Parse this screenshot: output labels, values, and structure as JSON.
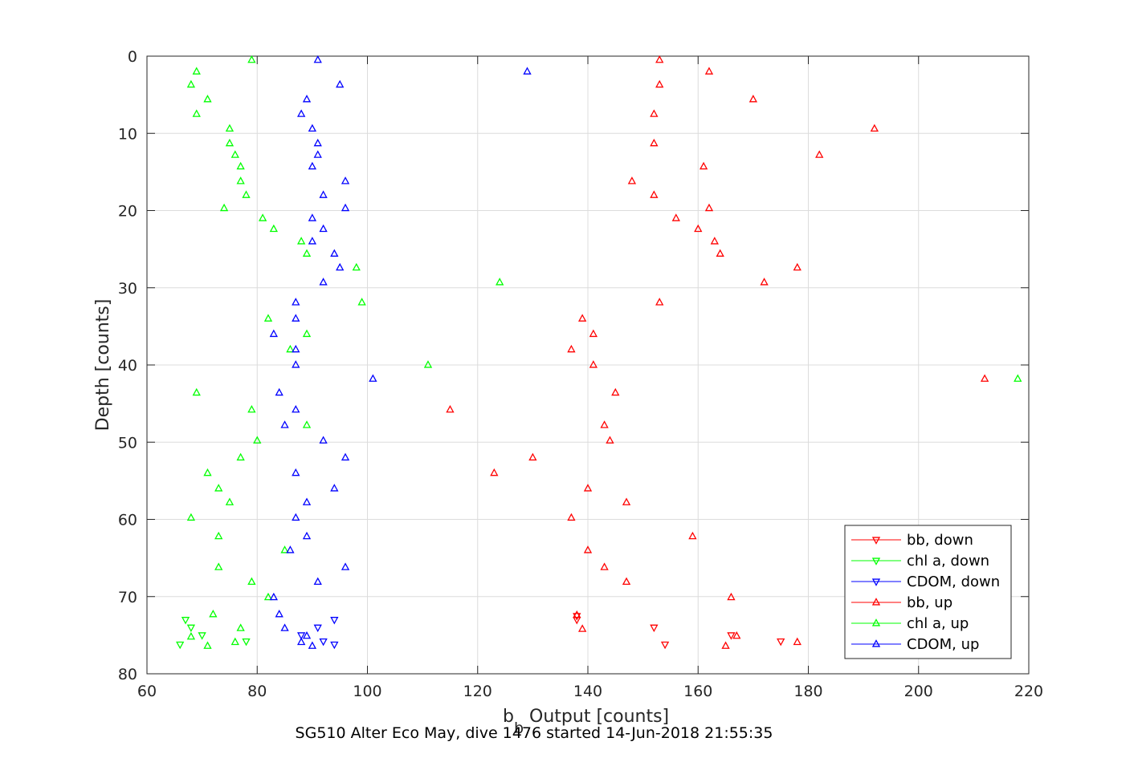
{
  "chart_data": {
    "type": "scatter",
    "xlabel_main": "b",
    "xlabel_sub": "b",
    "xlabel_rest": " Output [counts]",
    "ylabel": "Depth [counts]",
    "caption": "SG510 Alter Eco May, dive 1476 started 14-Jun-2018 21:55:35",
    "xlim": [
      60,
      220
    ],
    "ylim": [
      0,
      80
    ],
    "y_reversed": true,
    "grid": true,
    "legend_position": "bottom-right",
    "x_ticks": [
      "60",
      "80",
      "100",
      "120",
      "140",
      "160",
      "180",
      "200",
      "220"
    ],
    "y_ticks": [
      "0",
      "10",
      "20",
      "30",
      "40",
      "50",
      "60",
      "70",
      "80"
    ],
    "series": [
      {
        "name": "bb, down",
        "color": "#ff0000",
        "marker": "triangle-down",
        "points": [
          [
            138,
            72.5
          ],
          [
            152,
            74
          ],
          [
            166,
            75
          ],
          [
            175,
            75.8
          ],
          [
            154,
            76.2
          ],
          [
            138,
            73
          ]
        ]
      },
      {
        "name": "chl a, down",
        "color": "#00ff00",
        "marker": "triangle-down",
        "points": [
          [
            67,
            73
          ],
          [
            68,
            74
          ],
          [
            70,
            75
          ],
          [
            78,
            75.8
          ],
          [
            66,
            76.2
          ]
        ]
      },
      {
        "name": "CDOM, down",
        "color": "#0000ff",
        "marker": "triangle-down",
        "points": [
          [
            94,
            73
          ],
          [
            91,
            74
          ],
          [
            88,
            75
          ],
          [
            92,
            75.8
          ],
          [
            94,
            76.2
          ]
        ]
      },
      {
        "name": "bb, up",
        "color": "#ff0000",
        "marker": "triangle-up",
        "points": [
          [
            153,
            0.5
          ],
          [
            162,
            2
          ],
          [
            153,
            3.7
          ],
          [
            170,
            5.6
          ],
          [
            152,
            7.5
          ],
          [
            192,
            9.4
          ],
          [
            152,
            11.3
          ],
          [
            182,
            12.8
          ],
          [
            161,
            14.3
          ],
          [
            148,
            16.2
          ],
          [
            152,
            18
          ],
          [
            162,
            19.7
          ],
          [
            156,
            21
          ],
          [
            160,
            22.4
          ],
          [
            163,
            24
          ],
          [
            164,
            25.6
          ],
          [
            178,
            27.4
          ],
          [
            172,
            29.3
          ],
          [
            153,
            31.9
          ],
          [
            139,
            34
          ],
          [
            141,
            36
          ],
          [
            137,
            38
          ],
          [
            141,
            40
          ],
          [
            212,
            41.8
          ],
          [
            145,
            43.6
          ],
          [
            115,
            45.8
          ],
          [
            143,
            47.8
          ],
          [
            144,
            49.8
          ],
          [
            130,
            52
          ],
          [
            123,
            54
          ],
          [
            140,
            56
          ],
          [
            147,
            57.8
          ],
          [
            137,
            59.8
          ],
          [
            159,
            62.2
          ],
          [
            140,
            64
          ],
          [
            143,
            66.2
          ],
          [
            147,
            68.1
          ],
          [
            166,
            70.1
          ],
          [
            138,
            72.4
          ],
          [
            139,
            74.2
          ],
          [
            167,
            75.1
          ],
          [
            178,
            75.9
          ],
          [
            165,
            76.4
          ]
        ]
      },
      {
        "name": "chl a, up",
        "color": "#00ff00",
        "marker": "triangle-up",
        "points": [
          [
            79,
            0.5
          ],
          [
            69,
            2
          ],
          [
            68,
            3.7
          ],
          [
            71,
            5.6
          ],
          [
            69,
            7.5
          ],
          [
            75,
            9.4
          ],
          [
            75,
            11.3
          ],
          [
            76,
            12.8
          ],
          [
            77,
            14.3
          ],
          [
            77,
            16.2
          ],
          [
            78,
            18
          ],
          [
            74,
            19.7
          ],
          [
            81,
            21
          ],
          [
            83,
            22.4
          ],
          [
            88,
            24
          ],
          [
            89,
            25.6
          ],
          [
            98,
            27.4
          ],
          [
            124,
            29.3
          ],
          [
            99,
            31.9
          ],
          [
            82,
            34
          ],
          [
            89,
            36
          ],
          [
            86,
            38
          ],
          [
            111,
            40
          ],
          [
            218,
            41.8
          ],
          [
            69,
            43.6
          ],
          [
            79,
            45.8
          ],
          [
            89,
            47.8
          ],
          [
            80,
            49.8
          ],
          [
            77,
            52
          ],
          [
            71,
            54
          ],
          [
            73,
            56
          ],
          [
            75,
            57.8
          ],
          [
            68,
            59.8
          ],
          [
            73,
            62.2
          ],
          [
            85,
            64
          ],
          [
            73,
            66.2
          ],
          [
            79,
            68.1
          ],
          [
            82,
            70.1
          ],
          [
            72,
            72.3
          ],
          [
            77,
            74.1
          ],
          [
            68,
            75.2
          ],
          [
            76,
            75.9
          ],
          [
            71,
            76.4
          ]
        ]
      },
      {
        "name": "CDOM, up",
        "color": "#0000ff",
        "marker": "triangle-up",
        "points": [
          [
            91,
            0.5
          ],
          [
            129,
            2
          ],
          [
            95,
            3.7
          ],
          [
            89,
            5.6
          ],
          [
            88,
            7.5
          ],
          [
            90,
            9.4
          ],
          [
            91,
            11.3
          ],
          [
            91,
            12.8
          ],
          [
            90,
            14.3
          ],
          [
            96,
            16.2
          ],
          [
            92,
            18
          ],
          [
            96,
            19.7
          ],
          [
            90,
            21
          ],
          [
            92,
            22.4
          ],
          [
            90,
            24
          ],
          [
            94,
            25.6
          ],
          [
            95,
            27.4
          ],
          [
            92,
            29.3
          ],
          [
            87,
            31.9
          ],
          [
            87,
            34
          ],
          [
            83,
            36
          ],
          [
            87,
            38
          ],
          [
            87,
            40
          ],
          [
            101,
            41.8
          ],
          [
            84,
            43.6
          ],
          [
            87,
            45.8
          ],
          [
            85,
            47.8
          ],
          [
            92,
            49.8
          ],
          [
            96,
            52
          ],
          [
            87,
            54
          ],
          [
            94,
            56
          ],
          [
            89,
            57.8
          ],
          [
            87,
            59.8
          ],
          [
            89,
            62.2
          ],
          [
            86,
            64
          ],
          [
            96,
            66.2
          ],
          [
            91,
            68.1
          ],
          [
            83,
            70.1
          ],
          [
            84,
            72.3
          ],
          [
            85,
            74.1
          ],
          [
            89,
            75.1
          ],
          [
            88,
            75.9
          ],
          [
            90,
            76.4
          ]
        ]
      }
    ]
  }
}
